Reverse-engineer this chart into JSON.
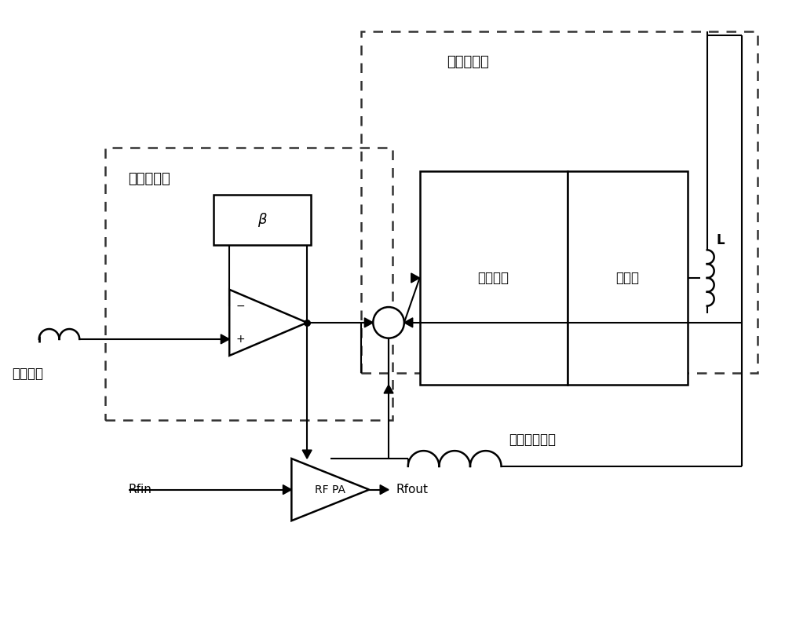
{
  "bg_color": "#ffffff",
  "line_color": "#000000",
  "fig_width": 10.0,
  "fig_height": 7.96,
  "labels": {
    "input_envelope": "输入包络",
    "linear_amp": "线性放大器",
    "switching_amp": "开关放大器",
    "control_circuit": "控制电路",
    "output_stage": "输出级",
    "beta": "β",
    "L_label": "L",
    "output_mod_voltage": "输出调制电压",
    "rfin": "Rfin",
    "rfout": "Rfout",
    "rf_pa": "RF PA",
    "minus": "−",
    "plus": "+"
  }
}
